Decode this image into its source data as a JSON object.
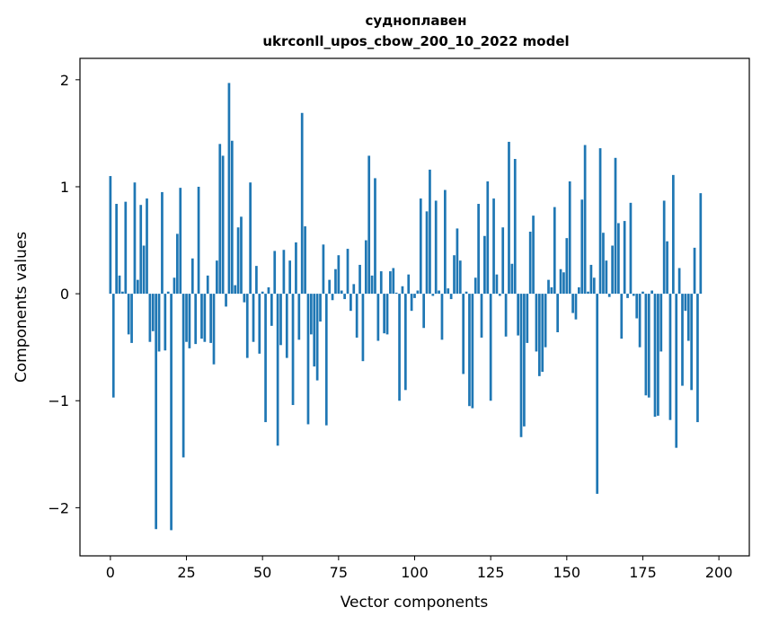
{
  "chart_data": {
    "type": "bar",
    "title_line1": "судноплавен",
    "title_line2": "ukrconll_upos_cbow_200_10_2022 model",
    "xlabel": "Vector components",
    "ylabel": "Components values",
    "xlim": [
      -10,
      210
    ],
    "ylim": [
      -2.45,
      2.2
    ],
    "xticks": [
      0,
      25,
      50,
      75,
      100,
      125,
      150,
      175,
      200
    ],
    "yticks": [
      -2,
      -1,
      0,
      1,
      2
    ],
    "xtick_labels": [
      "0",
      "25",
      "50",
      "75",
      "100",
      "125",
      "150",
      "175",
      "200"
    ],
    "ytick_labels": [
      "−2",
      "−1",
      "0",
      "1",
      "2"
    ],
    "bar_color": "#1f77b4",
    "grid": false,
    "values": [
      1.1,
      -0.97,
      0.84,
      0.17,
      0.02,
      0.86,
      -0.38,
      -0.46,
      1.04,
      0.13,
      0.83,
      0.45,
      0.89,
      -0.45,
      -0.35,
      -2.2,
      -0.54,
      0.95,
      -0.53,
      0.02,
      -2.21,
      0.15,
      0.56,
      0.99,
      -1.53,
      -0.45,
      -0.51,
      0.33,
      -0.47,
      1.0,
      -0.42,
      -0.45,
      0.17,
      -0.46,
      -0.66,
      0.31,
      1.4,
      1.29,
      -0.12,
      1.97,
      1.43,
      0.08,
      0.62,
      0.72,
      -0.08,
      -0.6,
      1.04,
      -0.45,
      0.26,
      -0.56,
      0.02,
      -1.2,
      0.06,
      -0.3,
      0.4,
      -1.42,
      -0.48,
      0.41,
      -0.6,
      0.31,
      -1.04,
      0.48,
      -0.43,
      1.69,
      0.63,
      -1.22,
      -0.38,
      -0.68,
      -0.81,
      -0.26,
      0.46,
      -1.23,
      0.13,
      -0.06,
      0.23,
      0.36,
      0.03,
      -0.05,
      0.42,
      -0.16,
      0.09,
      -0.41,
      0.27,
      -0.63,
      0.5,
      1.29,
      0.17,
      1.08,
      -0.44,
      0.21,
      -0.37,
      -0.38,
      0.21,
      0.24,
      0.01,
      -1.0,
      0.07,
      -0.9,
      0.18,
      -0.16,
      -0.04,
      0.03,
      0.89,
      -0.32,
      0.77,
      1.16,
      -0.02,
      0.87,
      0.03,
      -0.43,
      0.97,
      0.05,
      -0.05,
      0.36,
      0.61,
      0.31,
      -0.75,
      0.02,
      -1.05,
      -1.07,
      0.15,
      0.84,
      -0.41,
      0.54,
      1.05,
      -1.0,
      0.89,
      0.18,
      -0.02,
      0.62,
      -0.4,
      1.42,
      0.28,
      1.26,
      -0.39,
      -1.34,
      -1.24,
      -0.46,
      0.58,
      0.73,
      -0.54,
      -0.77,
      -0.73,
      -0.5,
      0.13,
      0.06,
      0.81,
      -0.36,
      0.23,
      0.2,
      0.52,
      1.05,
      -0.18,
      -0.24,
      0.06,
      0.88,
      1.39,
      0.02,
      0.27,
      0.15,
      -1.87,
      1.36,
      0.57,
      0.31,
      -0.03,
      0.45,
      1.27,
      0.66,
      -0.42,
      0.68,
      -0.04,
      0.85,
      -0.02,
      -0.23,
      -0.5,
      0.02,
      -0.95,
      -0.97,
      0.03,
      -1.15,
      -1.14,
      -0.54,
      0.87,
      0.49,
      -1.18,
      1.11,
      -1.44,
      0.24,
      -0.86,
      -0.16,
      -0.44,
      -0.9,
      0.43,
      -1.2,
      0.94
    ]
  }
}
